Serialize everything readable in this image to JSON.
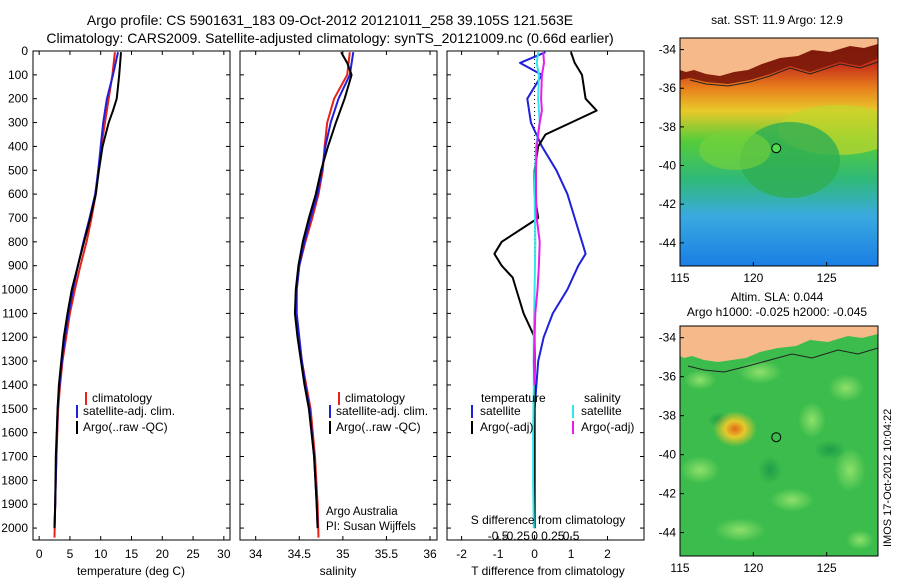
{
  "header": {
    "line1": "Argo profile: CS 5901631_183 09-Oct-2012 20121011_258 39.105S 121.563E",
    "line2": "Climatology: CARS2009. Satellite-adjusted climatology: synTS_20121009.nc (0.66d earlier)"
  },
  "colors": {
    "climatology": "#e8211a",
    "satellite": "#1f1fdc",
    "argo": "#000000",
    "sat_salinity": "#2ee8ee",
    "argo_salinity": "#e81ee8",
    "land": "#f5b98a"
  },
  "chart_data": [
    {
      "type": "line",
      "panel": "temperature",
      "xlabel": "temperature (deg C)",
      "xticks": [
        0,
        5,
        10,
        15,
        20,
        25,
        30
      ],
      "xlim": [
        -1,
        31
      ],
      "ylim": [
        0,
        2050
      ],
      "yticks": [
        0,
        100,
        200,
        300,
        400,
        500,
        600,
        700,
        800,
        900,
        1000,
        1100,
        1200,
        1300,
        1400,
        1500,
        1600,
        1700,
        1800,
        1900,
        2000
      ],
      "legend": [
        "climatology",
        "satellite-adj. clim.",
        "Argo(..raw -QC)"
      ],
      "series": [
        {
          "name": "climatology",
          "color_key": "climatology",
          "depth": [
            5,
            100,
            200,
            300,
            400,
            500,
            600,
            700,
            800,
            900,
            1000,
            1100,
            1200,
            1300,
            1400,
            1500,
            1700,
            1900,
            2040
          ],
          "values": [
            12.3,
            11.9,
            11.3,
            10.7,
            10.1,
            9.6,
            9.2,
            8.5,
            7.7,
            6.7,
            5.8,
            5.0,
            4.4,
            3.8,
            3.4,
            3.1,
            2.8,
            2.6,
            2.5
          ]
        },
        {
          "name": "satellite-adj. clim.",
          "color_key": "satellite",
          "depth": [
            5,
            100,
            200,
            300,
            400,
            500,
            600,
            700,
            800,
            900,
            1000,
            1100,
            1200,
            1300,
            1400,
            1500,
            1700,
            1900,
            2000
          ],
          "values": [
            12.8,
            12.0,
            11.0,
            10.4,
            10.0,
            9.6,
            9.1,
            8.2,
            7.2,
            6.3,
            5.5,
            4.8,
            4.2,
            3.7,
            3.3,
            3.0,
            2.8,
            2.6,
            2.5
          ]
        },
        {
          "name": "Argo(..raw -QC)",
          "color_key": "argo",
          "depth": [
            5,
            100,
            150,
            200,
            250,
            300,
            400,
            500,
            600,
            700,
            800,
            900,
            1000,
            1100,
            1200,
            1300,
            1400,
            1500,
            1700,
            1900,
            2000
          ],
          "values": [
            13.3,
            13.0,
            12.8,
            12.6,
            12.0,
            11.3,
            10.3,
            9.7,
            9.2,
            8.3,
            7.3,
            6.3,
            5.3,
            4.6,
            4.0,
            3.6,
            3.2,
            3.0,
            2.7,
            2.6,
            2.5
          ]
        }
      ]
    },
    {
      "type": "line",
      "panel": "salinity",
      "xlabel": "salinity",
      "xticks": [
        34,
        34.5,
        35,
        35.5,
        36
      ],
      "xlim": [
        33.82,
        36.08
      ],
      "ylim": [
        0,
        2050
      ],
      "legend": [
        "climatology",
        "satellite-adj. clim.",
        "Argo(..raw -QC)"
      ],
      "annotations": [
        "Argo Australia",
        "PI: Susan Wijffels"
      ],
      "series": [
        {
          "name": "climatology",
          "color_key": "climatology",
          "depth": [
            5,
            100,
            200,
            300,
            400,
            500,
            600,
            700,
            800,
            900,
            1000,
            1100,
            1200,
            1300,
            1400,
            1500,
            1700,
            1900,
            2040
          ],
          "values": [
            35.08,
            35.05,
            34.9,
            34.82,
            34.79,
            34.77,
            34.72,
            34.65,
            34.57,
            34.5,
            34.47,
            34.46,
            34.49,
            34.53,
            34.58,
            34.63,
            34.68,
            34.71,
            34.72
          ]
        },
        {
          "name": "satellite-adj. clim.",
          "color_key": "satellite",
          "depth": [
            5,
            100,
            200,
            300,
            400,
            500,
            600,
            700,
            800,
            900,
            1000,
            1100,
            1200,
            1300,
            1400,
            1500,
            1700,
            1900,
            2000
          ],
          "values": [
            35.12,
            35.08,
            34.95,
            34.86,
            34.8,
            34.76,
            34.71,
            34.63,
            34.56,
            34.5,
            34.47,
            34.47,
            34.5,
            34.53,
            34.57,
            34.62,
            34.67,
            34.7,
            34.71
          ]
        },
        {
          "name": "Argo(..raw -QC)",
          "color_key": "argo",
          "depth": [
            5,
            50,
            100,
            200,
            300,
            400,
            500,
            600,
            700,
            800,
            900,
            1000,
            1100,
            1200,
            1300,
            1400,
            1500,
            1700,
            1900,
            2000
          ],
          "values": [
            34.98,
            35.05,
            35.1,
            35.02,
            34.92,
            34.83,
            34.75,
            34.69,
            34.61,
            34.54,
            34.49,
            34.46,
            34.45,
            34.48,
            34.52,
            34.56,
            34.61,
            34.67,
            34.7,
            34.71
          ]
        }
      ]
    },
    {
      "type": "line",
      "panel": "difference",
      "xlabel": "T difference from climatology",
      "xlabel2": "S difference from climatology",
      "xticks": [
        -2,
        -1,
        0,
        1,
        2
      ],
      "xticks_top": [
        -0.5,
        -0.25,
        0,
        0.25,
        0.5
      ],
      "xlim": [
        -2.4,
        3.0
      ],
      "ylim": [
        0,
        2050
      ],
      "legend_temperature": {
        "title": "temperature",
        "items": [
          "satellite",
          "Argo(-adj)"
        ]
      },
      "legend_salinity": {
        "title": "salinity",
        "items": [
          "satellite",
          "Argo(-adj)"
        ]
      },
      "series": [
        {
          "name": "temperature satellite",
          "color_key": "satellite",
          "depth": [
            5,
            50,
            100,
            200,
            300,
            400,
            500,
            600,
            700,
            800,
            850,
            900,
            1000,
            1100,
            1200,
            1300,
            1500,
            1800,
            2000
          ],
          "values": [
            0.3,
            -0.4,
            0.2,
            -0.2,
            -0.1,
            0.2,
            0.6,
            0.9,
            1.1,
            1.3,
            1.4,
            1.2,
            0.9,
            0.5,
            0.25,
            0.1,
            0.0,
            0.0,
            0.0
          ]
        },
        {
          "name": "temperature Argo(-adj)",
          "color_key": "argo",
          "depth": [
            5,
            50,
            100,
            200,
            250,
            300,
            350,
            400,
            500,
            600,
            700,
            800,
            850,
            900,
            950,
            1000,
            1100,
            1200,
            1300,
            1500,
            1800,
            2000
          ],
          "values": [
            1.0,
            1.1,
            1.3,
            1.4,
            1.7,
            1.0,
            0.3,
            0.1,
            0.0,
            0.0,
            0.1,
            -0.9,
            -1.1,
            -0.9,
            -0.6,
            -0.5,
            -0.3,
            0.0,
            0.0,
            0.0,
            0.0,
            0.0
          ]
        },
        {
          "name": "salinity satellite",
          "color_key": "sat_salinity",
          "depth": [
            5,
            50,
            100,
            200,
            300,
            400,
            600,
            800,
            1000,
            1200,
            1400,
            1600,
            1800,
            2000
          ],
          "values": [
            0.05,
            0.03,
            0.06,
            0.05,
            0.07,
            0.02,
            0.0,
            0.01,
            0.0,
            -0.01,
            -0.01,
            -0.02,
            -0.02,
            -0.01
          ]
        },
        {
          "name": "salinity Argo(-adj)",
          "color_key": "argo_salinity",
          "depth": [
            5,
            50,
            100,
            200,
            250,
            300,
            400,
            500,
            600,
            700,
            800,
            900,
            1000,
            1100,
            1200,
            1300,
            1400
          ],
          "values": [
            0.12,
            0.13,
            0.1,
            0.09,
            0.1,
            0.07,
            0.03,
            0.02,
            0.02,
            0.03,
            0.07,
            0.06,
            0.04,
            0.01,
            0.0,
            -0.01,
            0.0
          ]
        }
      ]
    },
    {
      "type": "heatmap",
      "panel": "map_sst",
      "title": "sat. SST: 11.9  Argo: 12.9",
      "xlim": [
        115,
        128.5
      ],
      "ylim": [
        -45.2,
        -33.4
      ],
      "xticks": [
        115,
        120,
        125
      ],
      "yticks": [
        -34,
        -36,
        -38,
        -40,
        -42,
        -44
      ],
      "marker": {
        "lon": 121.563,
        "lat": -39.105
      }
    },
    {
      "type": "heatmap",
      "panel": "map_sla",
      "title": "Altim. SLA: 0.044",
      "subtitle": "Argo h1000: -0.025 h2000: -0.045",
      "xlim": [
        115,
        128.5
      ],
      "ylim": [
        -45.2,
        -33.4
      ],
      "xticks": [
        115,
        120,
        125
      ],
      "yticks": [
        -34,
        -36,
        -38,
        -40,
        -42,
        -44
      ],
      "marker": {
        "lon": 121.563,
        "lat": -39.105
      }
    }
  ],
  "footer": {
    "vertical_stamp": "IMOS 17-Oct-2012 10:04:22"
  }
}
